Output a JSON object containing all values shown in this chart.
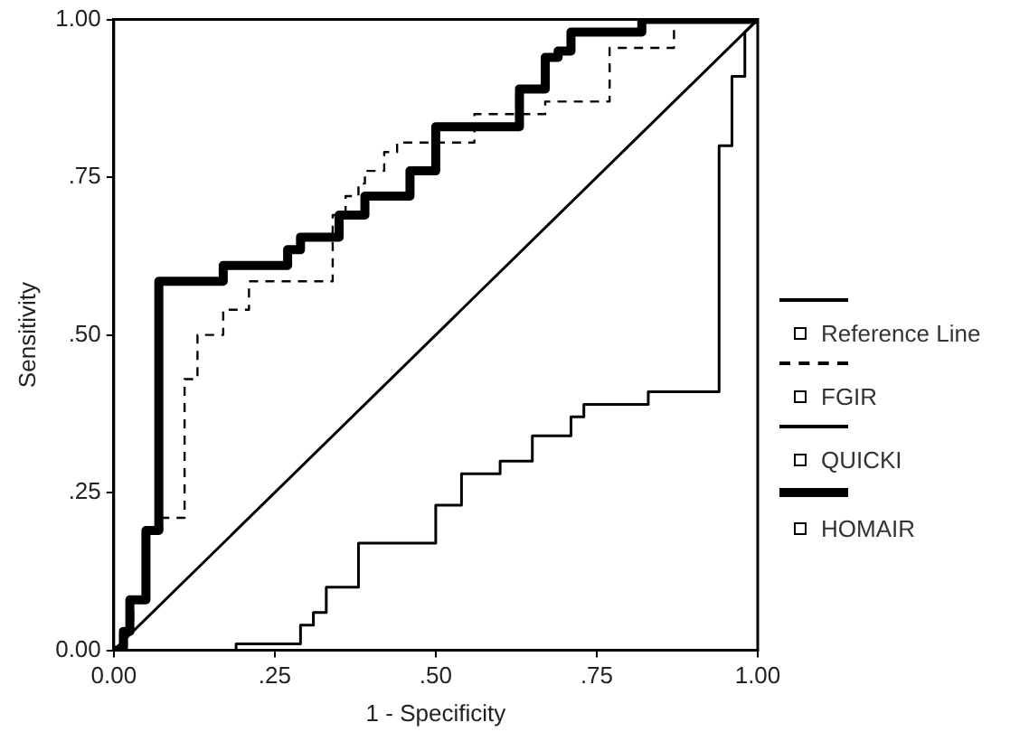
{
  "chart_data": {
    "type": "line",
    "xlabel": "1 - Specificity",
    "ylabel": "Sensitivity",
    "xlim": [
      0,
      1
    ],
    "ylim": [
      0,
      1
    ],
    "xticks": [
      {
        "value": 0,
        "label": "0.00"
      },
      {
        "value": 0.25,
        "label": ".25"
      },
      {
        "value": 0.5,
        "label": ".50"
      },
      {
        "value": 0.75,
        "label": ".75"
      },
      {
        "value": 1,
        "label": "1.00"
      }
    ],
    "yticks": [
      {
        "value": 0,
        "label": "0.00"
      },
      {
        "value": 0.25,
        "label": ".25"
      },
      {
        "value": 0.5,
        "label": ".50"
      },
      {
        "value": 0.75,
        "label": ".75"
      },
      {
        "value": 1,
        "label": "1.00"
      }
    ],
    "grid": false,
    "legend": "right",
    "marker": "none",
    "series": [
      {
        "name": "Reference Line",
        "color": "#000000",
        "line_style": "solid",
        "x": [
          0,
          1
        ],
        "values": [
          0,
          1
        ]
      },
      {
        "name": "FGIR",
        "color": "#000000",
        "line_style": "dashed",
        "x": [
          0,
          0.02,
          0.02,
          0.03,
          0.03,
          0.05,
          0.05,
          0.075,
          0.075,
          0.11,
          0.11,
          0.13,
          0.13,
          0.17,
          0.17,
          0.21,
          0.21,
          0.34,
          0.34,
          0.36,
          0.36,
          0.38,
          0.38,
          0.39,
          0.39,
          0.42,
          0.42,
          0.44,
          0.44,
          0.56,
          0.56,
          0.67,
          0.67,
          0.77,
          0.77,
          0.87,
          0.87,
          1
        ],
        "values": [
          0,
          0,
          0.03,
          0.03,
          0.08,
          0.08,
          0.19,
          0.19,
          0.21,
          0.21,
          0.43,
          0.43,
          0.5,
          0.5,
          0.54,
          0.54,
          0.585,
          0.585,
          0.69,
          0.69,
          0.72,
          0.72,
          0.74,
          0.74,
          0.76,
          0.76,
          0.79,
          0.79,
          0.805,
          0.805,
          0.85,
          0.85,
          0.87,
          0.87,
          0.955,
          0.955,
          1,
          1
        ]
      },
      {
        "name": "QUICKI",
        "color": "#000000",
        "line_style": "solid",
        "x": [
          0,
          0.19,
          0.19,
          0.29,
          0.29,
          0.31,
          0.31,
          0.33,
          0.33,
          0.38,
          0.38,
          0.5,
          0.5,
          0.54,
          0.54,
          0.6,
          0.6,
          0.65,
          0.65,
          0.71,
          0.71,
          0.73,
          0.73,
          0.83,
          0.83,
          0.94,
          0.94,
          0.96,
          0.96,
          0.98,
          0.98,
          1
        ],
        "values": [
          0,
          0,
          0.01,
          0.01,
          0.04,
          0.04,
          0.06,
          0.06,
          0.1,
          0.1,
          0.17,
          0.17,
          0.23,
          0.23,
          0.28,
          0.28,
          0.3,
          0.3,
          0.34,
          0.34,
          0.37,
          0.37,
          0.39,
          0.39,
          0.41,
          0.41,
          0.8,
          0.8,
          0.91,
          0.91,
          0.98,
          1
        ]
      },
      {
        "name": "HOMAIR",
        "color": "#000000",
        "line_style": "solid",
        "x": [
          0,
          0.015,
          0.015,
          0.025,
          0.025,
          0.05,
          0.05,
          0.07,
          0.07,
          0.17,
          0.17,
          0.27,
          0.27,
          0.29,
          0.29,
          0.35,
          0.35,
          0.39,
          0.39,
          0.46,
          0.46,
          0.5,
          0.5,
          0.63,
          0.63,
          0.67,
          0.67,
          0.69,
          0.69,
          0.71,
          0.71,
          0.82,
          0.82,
          1
        ],
        "values": [
          0,
          0,
          0.03,
          0.03,
          0.08,
          0.08,
          0.19,
          0.19,
          0.585,
          0.585,
          0.61,
          0.61,
          0.635,
          0.635,
          0.655,
          0.655,
          0.69,
          0.69,
          0.72,
          0.72,
          0.76,
          0.76,
          0.83,
          0.83,
          0.89,
          0.89,
          0.94,
          0.94,
          0.95,
          0.95,
          0.98,
          0.98,
          1,
          1
        ]
      }
    ]
  }
}
